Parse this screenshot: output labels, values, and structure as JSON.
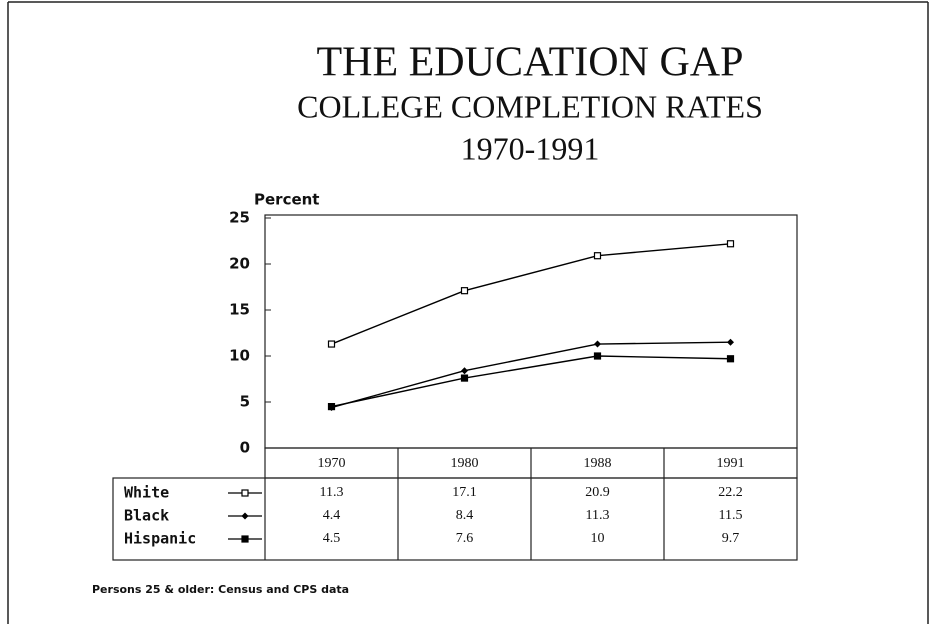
{
  "chart_data": {
    "type": "line",
    "title": "THE EDUCATION GAP",
    "subtitle": "COLLEGE COMPLETION RATES",
    "period": "1970-1991",
    "y_label": "Percent",
    "note": "Persons 25 & older: Census and CPS data",
    "categories": [
      "1970",
      "1980",
      "1988",
      "1991"
    ],
    "series": [
      {
        "name": "White",
        "color": "#000000",
        "marker": "open-square",
        "values": [
          11.3,
          17.1,
          20.9,
          22.2
        ]
      },
      {
        "name": "Black",
        "color": "#000000",
        "marker": "diamond",
        "values": [
          4.4,
          8.4,
          11.3,
          11.5
        ]
      },
      {
        "name": "Hispanic",
        "color": "#000000",
        "marker": "filled-square",
        "values": [
          4.5,
          7.6,
          10,
          9.7
        ]
      }
    ],
    "ylim": [
      0,
      25
    ],
    "yticks": [
      0,
      5,
      10,
      15,
      20,
      25
    ],
    "grid": false
  }
}
